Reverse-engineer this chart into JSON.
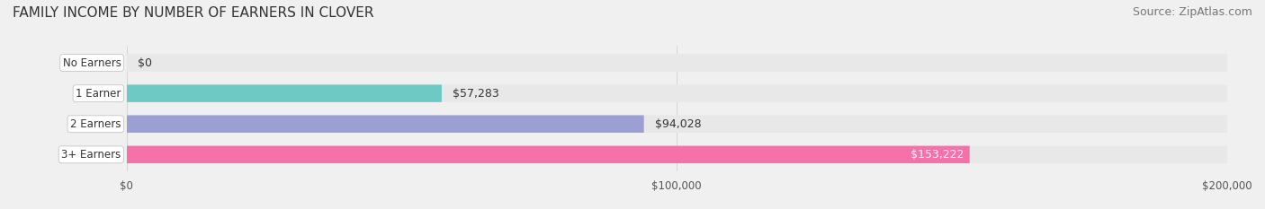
{
  "title": "FAMILY INCOME BY NUMBER OF EARNERS IN CLOVER",
  "source": "Source: ZipAtlas.com",
  "categories": [
    "No Earners",
    "1 Earner",
    "2 Earners",
    "3+ Earners"
  ],
  "values": [
    0,
    57283,
    94028,
    153222
  ],
  "bar_colors": [
    "#c9a8d4",
    "#6ec9c4",
    "#9b9fd4",
    "#f472a8"
  ],
  "value_labels": [
    "$0",
    "$57,283",
    "$94,028",
    "$153,222"
  ],
  "label_inside": [
    false,
    false,
    false,
    true
  ],
  "xlim": [
    0,
    200000
  ],
  "xticks": [
    0,
    100000,
    200000
  ],
  "xtick_labels": [
    "$0",
    "$100,000",
    "$200,000"
  ],
  "background_color": "#f0f0f0",
  "bar_bg_color": "#e8e8e8",
  "title_fontsize": 11,
  "source_fontsize": 9,
  "bar_height": 0.55,
  "bar_label_fontsize": 9,
  "category_label_fontsize": 8.5
}
